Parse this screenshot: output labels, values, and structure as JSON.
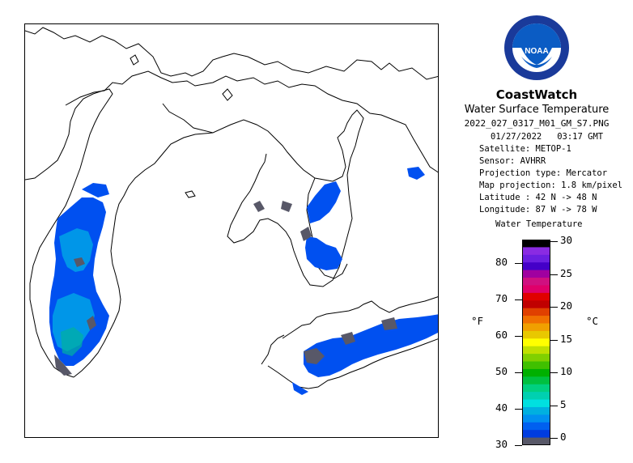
{
  "header": {
    "brand": "CoastWatch",
    "product": "Water Surface Temperature",
    "filename": "2022_027_0317_M01_GM_S7.PNG",
    "date": "01/27/2022",
    "time": "03:17 GMT"
  },
  "metadata": [
    {
      "label": "Satellite:",
      "value": "METOP-1"
    },
    {
      "label": "Sensor:",
      "value": "AVHRR"
    },
    {
      "label": "Projection type:",
      "value": "Mercator"
    },
    {
      "label": "Map projection:",
      "value": "1.8 km/pixel"
    },
    {
      "label": "Latitude :",
      "value": "42 N -> 48 N"
    },
    {
      "label": "Longitude:",
      "value": "87 W -> 78 W"
    }
  ],
  "logo": {
    "text": "NOAA",
    "icon": "noaa-logo-icon"
  },
  "legend": {
    "title": "Water Temperature",
    "unit_f": "°F",
    "unit_c": "°C",
    "fahrenheit_ticks": [
      "80",
      "70",
      "60",
      "50",
      "40",
      "30"
    ],
    "celsius_ticks": [
      "30",
      "25",
      "20",
      "15",
      "10",
      "5",
      "0"
    ],
    "colors": [
      "#000000",
      "#8a2be2",
      "#6b1fe0",
      "#4400c8",
      "#a000a0",
      "#d01080",
      "#e0006a",
      "#e00000",
      "#c00000",
      "#e04000",
      "#f07000",
      "#f0a000",
      "#e8c800",
      "#ffff00",
      "#c0e000",
      "#80d000",
      "#40c000",
      "#00b000",
      "#00c040",
      "#00d080",
      "#00d0b0",
      "#00e0e0",
      "#00b0e0",
      "#0090f0",
      "#0060f0",
      "#003ce0",
      "#585868"
    ]
  },
  "colors": {
    "land_outline": "#000000",
    "background": "#ffffff",
    "water_cold": "#0050f0",
    "water_mid": "#0096e8",
    "ice_gray": "#585868"
  }
}
